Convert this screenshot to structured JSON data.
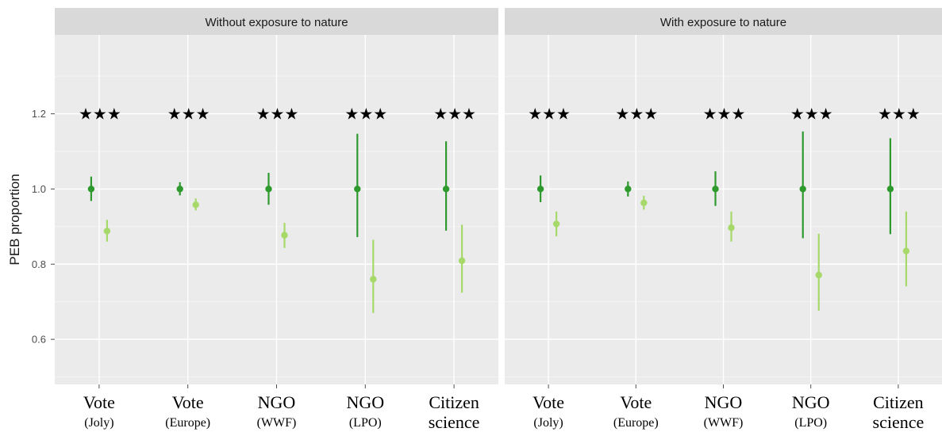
{
  "chart_data": {
    "type": "pointrange",
    "ylabel": "PEB proportion",
    "xlabel": "",
    "ylim": [
      0.48,
      1.41
    ],
    "yticks": [
      0.6,
      0.8,
      1.0,
      1.2
    ],
    "ytick_labels": [
      "0.6",
      "0.8",
      "1.0",
      "1.2"
    ],
    "grid": true,
    "categories": [
      {
        "main": "Vote",
        "sub": "(Joly)"
      },
      {
        "main": "Vote",
        "sub": "(Europe)"
      },
      {
        "main": "NGO",
        "sub": "(WWF)"
      },
      {
        "main": "NGO",
        "sub": "(LPO)"
      },
      {
        "main": "Citizen",
        "sub": "science"
      }
    ],
    "colors": {
      "series_1": "#2e9a2e",
      "series_2": "#a6d96a",
      "panel_bg": "#ebebeb",
      "strip_bg": "#d9d9d9",
      "grid_major": "#ffffff"
    },
    "panels": [
      {
        "title": "Without exposure to nature",
        "significance": [
          "★★★",
          "★★★",
          "★★★",
          "★★★",
          "★★★"
        ],
        "significance_y": 1.2,
        "series": [
          {
            "values": [
              1.0,
              1.0,
              1.0,
              1.0,
              1.0
            ],
            "lower": [
              0.968,
              0.983,
              0.958,
              0.872,
              0.889
            ],
            "upper": [
              1.033,
              1.018,
              1.043,
              1.147,
              1.127
            ]
          },
          {
            "values": [
              0.888,
              0.958,
              0.877,
              0.76,
              0.809
            ],
            "lower": [
              0.86,
              0.943,
              0.843,
              0.67,
              0.724
            ],
            "upper": [
              0.918,
              0.975,
              0.91,
              0.865,
              0.905
            ]
          }
        ]
      },
      {
        "title": "With exposure to nature",
        "significance": [
          "★★★",
          "★★★",
          "★★★",
          "★★★",
          "★★★"
        ],
        "significance_y": 1.2,
        "series": [
          {
            "values": [
              1.0,
              1.0,
              1.0,
              1.0,
              1.0
            ],
            "lower": [
              0.965,
              0.98,
              0.955,
              0.869,
              0.88
            ],
            "upper": [
              1.036,
              1.02,
              1.047,
              1.153,
              1.135
            ]
          },
          {
            "values": [
              0.907,
              0.963,
              0.897,
              0.771,
              0.835
            ],
            "lower": [
              0.874,
              0.945,
              0.86,
              0.676,
              0.741
            ],
            "upper": [
              0.94,
              0.982,
              0.94,
              0.881,
              0.94
            ]
          }
        ]
      }
    ]
  }
}
